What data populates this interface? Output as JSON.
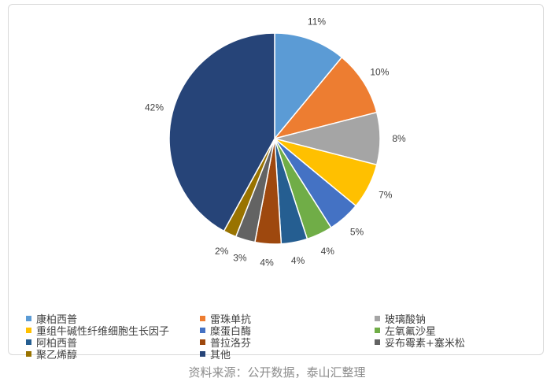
{
  "chart_data": {
    "type": "pie",
    "categories": [
      "康柏西普",
      "雷珠单抗",
      "玻璃酸钠",
      "重组牛碱性纤维细胞生长因子",
      "糜蛋白酶",
      "左氧氟沙星",
      "阿柏西普",
      "普拉洛芬",
      "妥布霉素+塞米松",
      "聚乙烯醇",
      "其他"
    ],
    "values": [
      11,
      10,
      8,
      7,
      5,
      4,
      4,
      4,
      3,
      2,
      42
    ],
    "data_labels": [
      "11%",
      "10%",
      "8%",
      "7%",
      "5%",
      "4%",
      "4%",
      "4%",
      "3%",
      "2%",
      "42%"
    ],
    "colors": [
      "#5b9bd5",
      "#ed7d31",
      "#a5a5a5",
      "#ffc000",
      "#4472c4",
      "#70ad47",
      "#255e91",
      "#9e480e",
      "#636363",
      "#997300",
      "#264478"
    ],
    "legend_position": "bottom",
    "start_angle": "12 o'clock",
    "direction": "clockwise"
  },
  "legend": [
    {
      "label": "康柏西普",
      "color": "#5b9bd5"
    },
    {
      "label": "雷珠单抗",
      "color": "#ed7d31"
    },
    {
      "label": "玻璃酸钠",
      "color": "#a5a5a5"
    },
    {
      "label": "重组牛碱性纤维细胞生长因子",
      "color": "#ffc000"
    },
    {
      "label": "糜蛋白酶",
      "color": "#4472c4"
    },
    {
      "label": "左氧氟沙星",
      "color": "#70ad47"
    },
    {
      "label": "阿柏西普",
      "color": "#255e91"
    },
    {
      "label": "普拉洛芬",
      "color": "#9e480e"
    },
    {
      "label": "妥布霉素+塞米松",
      "color": "#636363"
    },
    {
      "label": "聚乙烯醇",
      "color": "#997300"
    },
    {
      "label": "其他",
      "color": "#264478"
    }
  ],
  "source": "资料来源：公开数据，泰山汇整理"
}
